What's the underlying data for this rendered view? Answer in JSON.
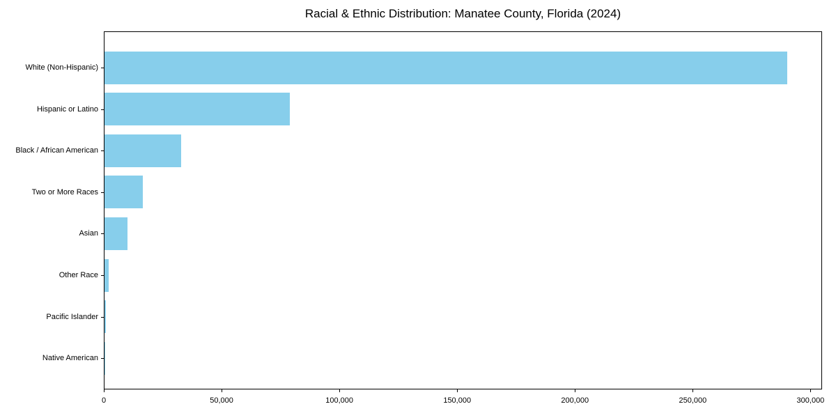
{
  "figure": {
    "background": "#ffffff",
    "text_color": "#000000"
  },
  "chart_data": {
    "type": "bar",
    "orientation": "horizontal",
    "title": "Racial & Ethnic Distribution: Manatee County, Florida (2024)",
    "xlabel": "",
    "ylabel": "",
    "categories": [
      "White (Non-Hispanic)",
      "Hispanic or Latino",
      "Black / African American",
      "Two or More Races",
      "Asian",
      "Other Race",
      "Pacific Islander",
      "Native American"
    ],
    "values": [
      290400,
      78700,
      32600,
      16400,
      9700,
      1700,
      450,
      250
    ],
    "xlim": [
      0,
      304900
    ],
    "x_ticks": [
      0,
      50000,
      100000,
      150000,
      200000,
      250000,
      300000
    ],
    "x_tick_labels": [
      "0",
      "50,000",
      "100,000",
      "150,000",
      "200,000",
      "250,000",
      "300,000"
    ],
    "bar_color": "#87CEEB",
    "axis_color": "#000000",
    "grid": false,
    "legend": null
  }
}
